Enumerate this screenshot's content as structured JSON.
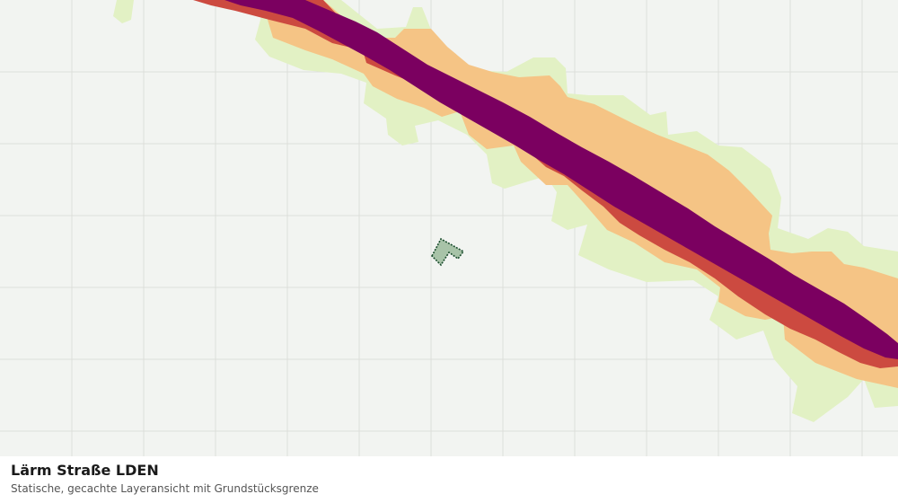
{
  "map": {
    "layer_title": "Lärm Straße LDEN",
    "layer_subtitle": "Statische, gecachte Layeransicht mit Grundstücksgrenze",
    "grid_visible": true,
    "noise_band_colors": {
      "outer": "#e2f1c4",
      "light": "#f5c485",
      "mid": "#cc4a40",
      "core": "#7b0060"
    },
    "parcel_fill": "#a8c3a8",
    "parcel_stroke": "#1b4d2e"
  }
}
